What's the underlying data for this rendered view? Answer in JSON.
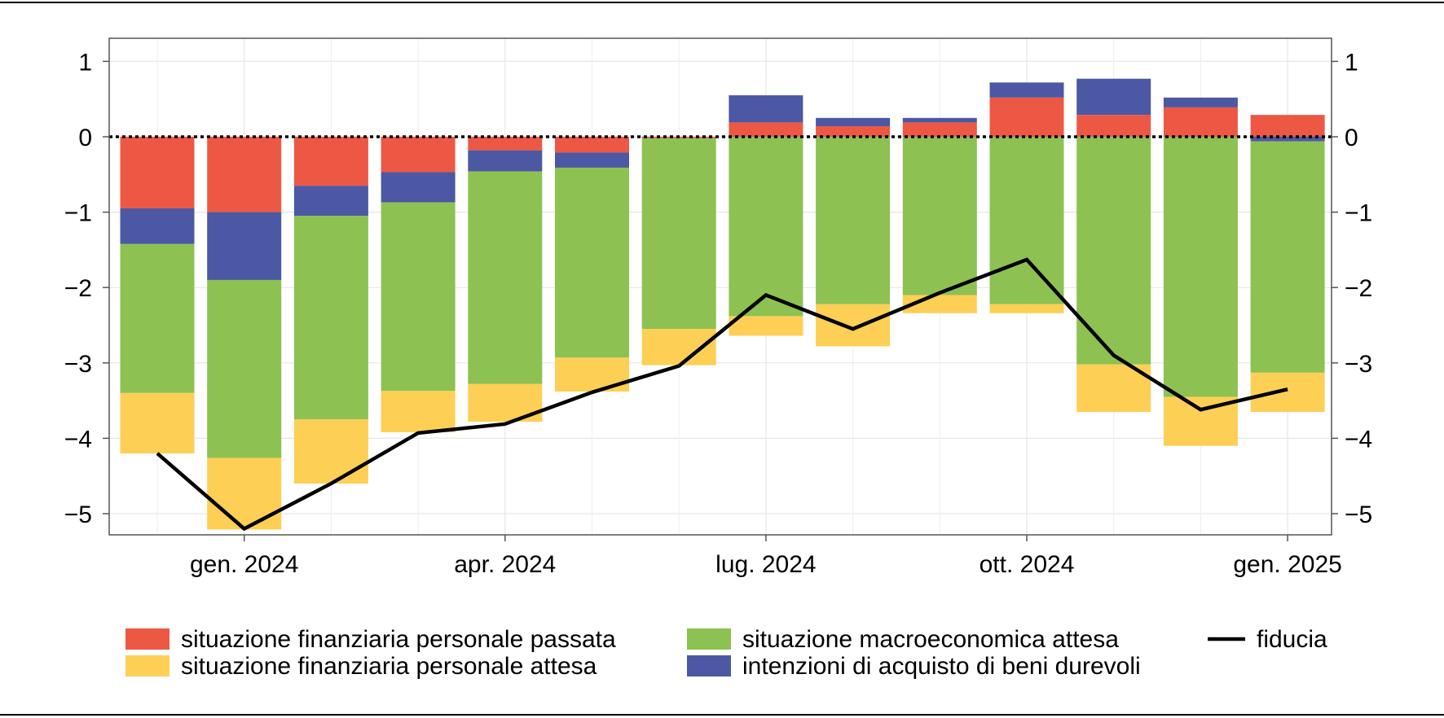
{
  "chart_data": {
    "type": "bar",
    "stacked": true,
    "grid": true,
    "legend_position": "bottom",
    "y_axis_right_mirror": true,
    "x": [
      "2023-12",
      "2024-01",
      "2024-02",
      "2024-03",
      "2024-04",
      "2024-05",
      "2024-06",
      "2024-07",
      "2024-08",
      "2024-09",
      "2024-10",
      "2024-11",
      "2024-12",
      "2025-01"
    ],
    "x_ticks": [
      {
        "x": "2024-01",
        "label": "gen. 2024"
      },
      {
        "x": "2024-04",
        "label": "apr. 2024"
      },
      {
        "x": "2024-07",
        "label": "lug. 2024"
      },
      {
        "x": "2024-10",
        "label": "ott. 2024"
      },
      {
        "x": "2025-01",
        "label": "gen. 2025"
      }
    ],
    "ylim": [
      -5.3,
      1.3
    ],
    "y_ticks": [
      1,
      0,
      -1,
      -2,
      -3,
      -4,
      -5
    ],
    "y_tick_labels": [
      "1",
      "0",
      "−1",
      "−2",
      "−3",
      "−4",
      "−5"
    ],
    "series": [
      {
        "name": "situazione finanziaria personale passata",
        "color": "#ec5844",
        "kind": "bar",
        "values": [
          -0.95,
          -1.0,
          -0.65,
          -0.47,
          -0.18,
          -0.21,
          -0.02,
          0.19,
          0.14,
          0.19,
          0.52,
          0.29,
          0.39,
          0.29
        ]
      },
      {
        "name": "intenzioni di acquisto di beni durevoli",
        "color": "#4c58a4",
        "kind": "bar",
        "values": [
          -0.47,
          -0.9,
          -0.4,
          -0.4,
          -0.28,
          -0.2,
          0.0,
          0.36,
          0.11,
          0.06,
          0.2,
          0.48,
          0.13,
          -0.06
        ]
      },
      {
        "name": "situazione macroeconomica attesa",
        "color": "#8dc152",
        "kind": "bar",
        "values": [
          -1.98,
          -2.36,
          -2.7,
          -2.5,
          -2.82,
          -2.52,
          -2.53,
          -2.38,
          -2.22,
          -2.1,
          -2.22,
          -3.02,
          -3.45,
          -3.07
        ]
      },
      {
        "name": "situazione finanziaria personale attesa",
        "color": "#fecf55",
        "kind": "bar",
        "values": [
          -0.8,
          -0.95,
          -0.85,
          -0.55,
          -0.5,
          -0.45,
          -0.48,
          -0.26,
          -0.56,
          -0.24,
          -0.12,
          -0.63,
          -0.65,
          -0.52
        ]
      },
      {
        "name": "fiducia",
        "color": "#000000",
        "kind": "line",
        "values": [
          -4.2,
          -5.2,
          -4.6,
          -3.93,
          -3.81,
          -3.39,
          -3.04,
          -2.1,
          -2.55,
          -2.07,
          -1.63,
          -2.9,
          -3.62,
          -3.35
        ]
      }
    ],
    "legend_order": [
      "situazione finanziaria personale passata",
      "situazione macroeconomica attesa",
      "fiducia",
      "situazione finanziaria personale attesa",
      "intenzioni di acquisto di beni durevoli"
    ]
  }
}
